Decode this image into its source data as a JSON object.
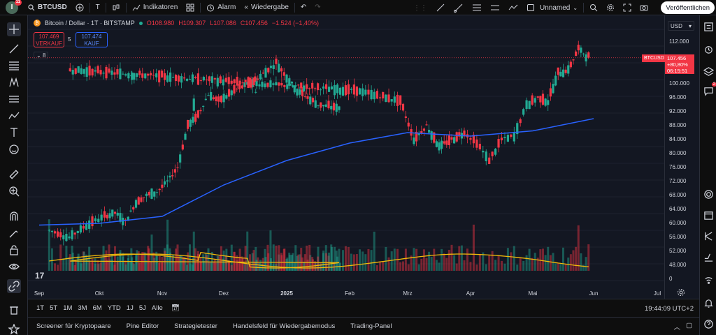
{
  "topbar": {
    "avatar_letter": "I",
    "avatar_badge": "11",
    "symbol": "BTCUSD",
    "interval": "T",
    "indicators_label": "Indikatoren",
    "alarm_label": "Alarm",
    "replay_label": "Wiedergabe",
    "layout_name": "Unnamed",
    "publish_label": "Veröffentlichen"
  },
  "legend": {
    "title": "Bitcoin / Dollar · 1T · BITSTAMP",
    "o": "O108.980",
    "h": "H109.307",
    "l": "L107.086",
    "c": "C107.456",
    "chg": "−1.524 (−1,40%)",
    "sell_price": "107.469",
    "sell_label": "VERKAUF",
    "spread": "5",
    "buy_price": "107.474",
    "buy_label": "KAUF",
    "collapse": "8"
  },
  "price_axis": {
    "currency": "USD",
    "ticks": [
      "112.000",
      "100.000",
      "96.000",
      "92.000",
      "88.000",
      "84.000",
      "80.000",
      "76.000",
      "72.000",
      "68.000",
      "64.000",
      "60.000",
      "56.000",
      "52.000",
      "48.000",
      "0"
    ],
    "current_symbol": "BTCUSD",
    "current_price": "107.456",
    "current_change": "+80,80%",
    "current_countdown": "06:15:51"
  },
  "time_axis": [
    "Sep",
    "Okt",
    "Nov",
    "Dez",
    "2025",
    "Feb",
    "Mrz",
    "Apr",
    "Mai",
    "Jun",
    "Jul"
  ],
  "rangebar": {
    "ranges": [
      "1T",
      "5T",
      "1M",
      "3M",
      "6M",
      "YTD",
      "1J",
      "5J",
      "Alle"
    ],
    "clock": "19:44:09 UTC+2"
  },
  "bottombar": {
    "tabs": [
      "Screener für Kryptopaare",
      "Pine Editor",
      "Strategietester",
      "Handelsfeld für Wiedergabemodus",
      "Trading-Panel"
    ]
  },
  "right_badge": "2",
  "colors": {
    "up": "#22ab94",
    "down": "#f23645",
    "ma": "#2962ff",
    "vol_ma": "#f0b90b",
    "chart_bg": "#131722"
  },
  "chart_data": {
    "type": "candlestick",
    "symbol": "BTCUSD",
    "ylim": [
      48000,
      114000
    ],
    "close_path": [
      {
        "x": "Sep",
        "y": 58000
      },
      {
        "x": "Sep",
        "y": 56000
      },
      {
        "x": "Sep",
        "y": 60000
      },
      {
        "x": "Okt",
        "y": 62000
      },
      {
        "x": "Okt",
        "y": 63000
      },
      {
        "x": "Okt",
        "y": 60500
      },
      {
        "x": "Okt",
        "y": 66000
      },
      {
        "x": "Okt",
        "y": 68000
      },
      {
        "x": "Okt",
        "y": 69000
      },
      {
        "x": "Nov",
        "y": 72000
      },
      {
        "x": "Nov",
        "y": 76000
      },
      {
        "x": "Nov",
        "y": 88000
      },
      {
        "x": "Nov",
        "y": 91000
      },
      {
        "x": "Nov",
        "y": 97000
      },
      {
        "x": "Nov",
        "y": 95000
      },
      {
        "x": "Dez",
        "y": 98000
      },
      {
        "x": "Dez",
        "y": 101000
      },
      {
        "x": "Dez",
        "y": 106000
      },
      {
        "x": "Dez",
        "y": 98000
      },
      {
        "x": "Dez",
        "y": 94000
      },
      {
        "x": "Dez",
        "y": 93000
      },
      {
        "x": "2025",
        "y": 98000
      },
      {
        "x": "2025",
        "y": 94000
      },
      {
        "x": "2025",
        "y": 102000
      },
      {
        "x": "2025",
        "y": 104000
      },
      {
        "x": "Feb",
        "y": 98000
      },
      {
        "x": "Feb",
        "y": 97000
      },
      {
        "x": "Feb",
        "y": 96000
      },
      {
        "x": "Feb",
        "y": 95000
      },
      {
        "x": "Mrz",
        "y": 84000
      },
      {
        "x": "Mrz",
        "y": 88000
      },
      {
        "x": "Mrz",
        "y": 82000
      },
      {
        "x": "Mrz",
        "y": 84000
      },
      {
        "x": "Mrz",
        "y": 86000
      },
      {
        "x": "Apr",
        "y": 83000
      },
      {
        "x": "Apr",
        "y": 78000
      },
      {
        "x": "Apr",
        "y": 84000
      },
      {
        "x": "Apr",
        "y": 85000
      },
      {
        "x": "Apr",
        "y": 94000
      },
      {
        "x": "Mai",
        "y": 96000
      },
      {
        "x": "Mai",
        "y": 95000
      },
      {
        "x": "Mai",
        "y": 103000
      },
      {
        "x": "Mai",
        "y": 104000
      },
      {
        "x": "Mai",
        "y": 110000
      },
      {
        "x": "Mai",
        "y": 107456
      }
    ],
    "ma_path": [
      {
        "x": "Sep",
        "y": 59500
      },
      {
        "x": "Okt",
        "y": 60000
      },
      {
        "x": "Nov",
        "y": 62000
      },
      {
        "x": "Dez",
        "y": 71000
      },
      {
        "x": "2025",
        "y": 78000
      },
      {
        "x": "Feb",
        "y": 83000
      },
      {
        "x": "Mrz",
        "y": 86000
      },
      {
        "x": "Apr",
        "y": 85000
      },
      {
        "x": "Mai",
        "y": 86500
      },
      {
        "x": "Jun",
        "y": 90000
      }
    ]
  }
}
